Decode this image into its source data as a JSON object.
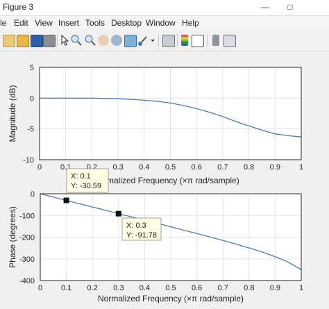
{
  "window": {
    "title": "Figure 3",
    "minimize_glyph": "—",
    "maximize_glyph": "□"
  },
  "menu": [
    "le",
    "Edit",
    "View",
    "Insert",
    "Tools",
    "Desktop",
    "Window",
    "Help"
  ],
  "toolbar": {
    "icons": [
      "new-figure-icon",
      "open-file-icon",
      "save-icon",
      "print-icon",
      "arrow-pointer-icon",
      "zoom-in-icon",
      "zoom-out-icon",
      "pan-hand-icon",
      "rotate-3d-icon",
      "data-cursor-icon",
      "brush-icon",
      "dropdown-arrow-icon",
      "link-plot-icon",
      "colorbar-icon",
      "legend-icon",
      "hide-plot-tools-icon",
      "show-plot-tools-icon"
    ]
  },
  "chart_data": [
    {
      "type": "line",
      "ylabel": "Magnitude (dB)",
      "xlabel": "",
      "xlim": [
        0,
        1
      ],
      "ylim": [
        -10,
        5
      ],
      "xticks": [
        "0",
        "0.1",
        "0.2",
        "0.3",
        "0.4",
        "0.5",
        "0.6",
        "0.7",
        "0.8",
        "0.9",
        "1"
      ],
      "yticks": [
        "5",
        "0",
        "-5",
        "-10"
      ],
      "grid": true,
      "color": "#4a7ab5",
      "series": [
        {
          "x": [
            0,
            0.05,
            0.1,
            0.15,
            0.2,
            0.25,
            0.3,
            0.35,
            0.4,
            0.45,
            0.5,
            0.55,
            0.6,
            0.65,
            0.7,
            0.75,
            0.8,
            0.85,
            0.9,
            0.95,
            1.0
          ],
          "y": [
            0,
            0,
            0,
            0,
            0,
            -0.05,
            -0.1,
            -0.2,
            -0.35,
            -0.5,
            -0.8,
            -1.2,
            -1.7,
            -2.3,
            -3.0,
            -3.8,
            -4.5,
            -5.2,
            -5.8,
            -6.1,
            -6.3
          ]
        }
      ]
    },
    {
      "type": "line",
      "ylabel": "Phase (degrees)",
      "xlabel": "Normalized Frequency  (×π rad/sample)",
      "xlim": [
        0,
        1
      ],
      "ylim": [
        -400,
        0
      ],
      "xticks": [
        "0",
        "0.1",
        "0.2",
        "0.3",
        "0.4",
        "0.5",
        "0.6",
        "0.7",
        "0.8",
        "0.9",
        "1"
      ],
      "yticks": [
        "0",
        "-100",
        "-200",
        "-300",
        "-400"
      ],
      "grid": true,
      "color": "#4a7ab5",
      "series": [
        {
          "x": [
            0,
            0.05,
            0.1,
            0.15,
            0.2,
            0.25,
            0.3,
            0.35,
            0.4,
            0.45,
            0.5,
            0.55,
            0.6,
            0.65,
            0.7,
            0.75,
            0.8,
            0.85,
            0.9,
            0.95,
            1.0
          ],
          "y": [
            0,
            -15,
            -30.59,
            -46,
            -61,
            -76,
            -91.78,
            -107,
            -122,
            -137,
            -152,
            -168,
            -183,
            -199,
            -215,
            -232,
            -250,
            -268,
            -290,
            -315,
            -350
          ]
        }
      ]
    }
  ],
  "top_xlabel_visible": "malized Frequency  (×π rad/sample)",
  "datatips": [
    {
      "x": 0.1,
      "y": -30.59,
      "line1": "X: 0.1",
      "line2": "Y: -30.59"
    },
    {
      "x": 0.3,
      "y": -91.78,
      "line1": "X: 0.3",
      "line2": "Y: -91.78"
    }
  ]
}
